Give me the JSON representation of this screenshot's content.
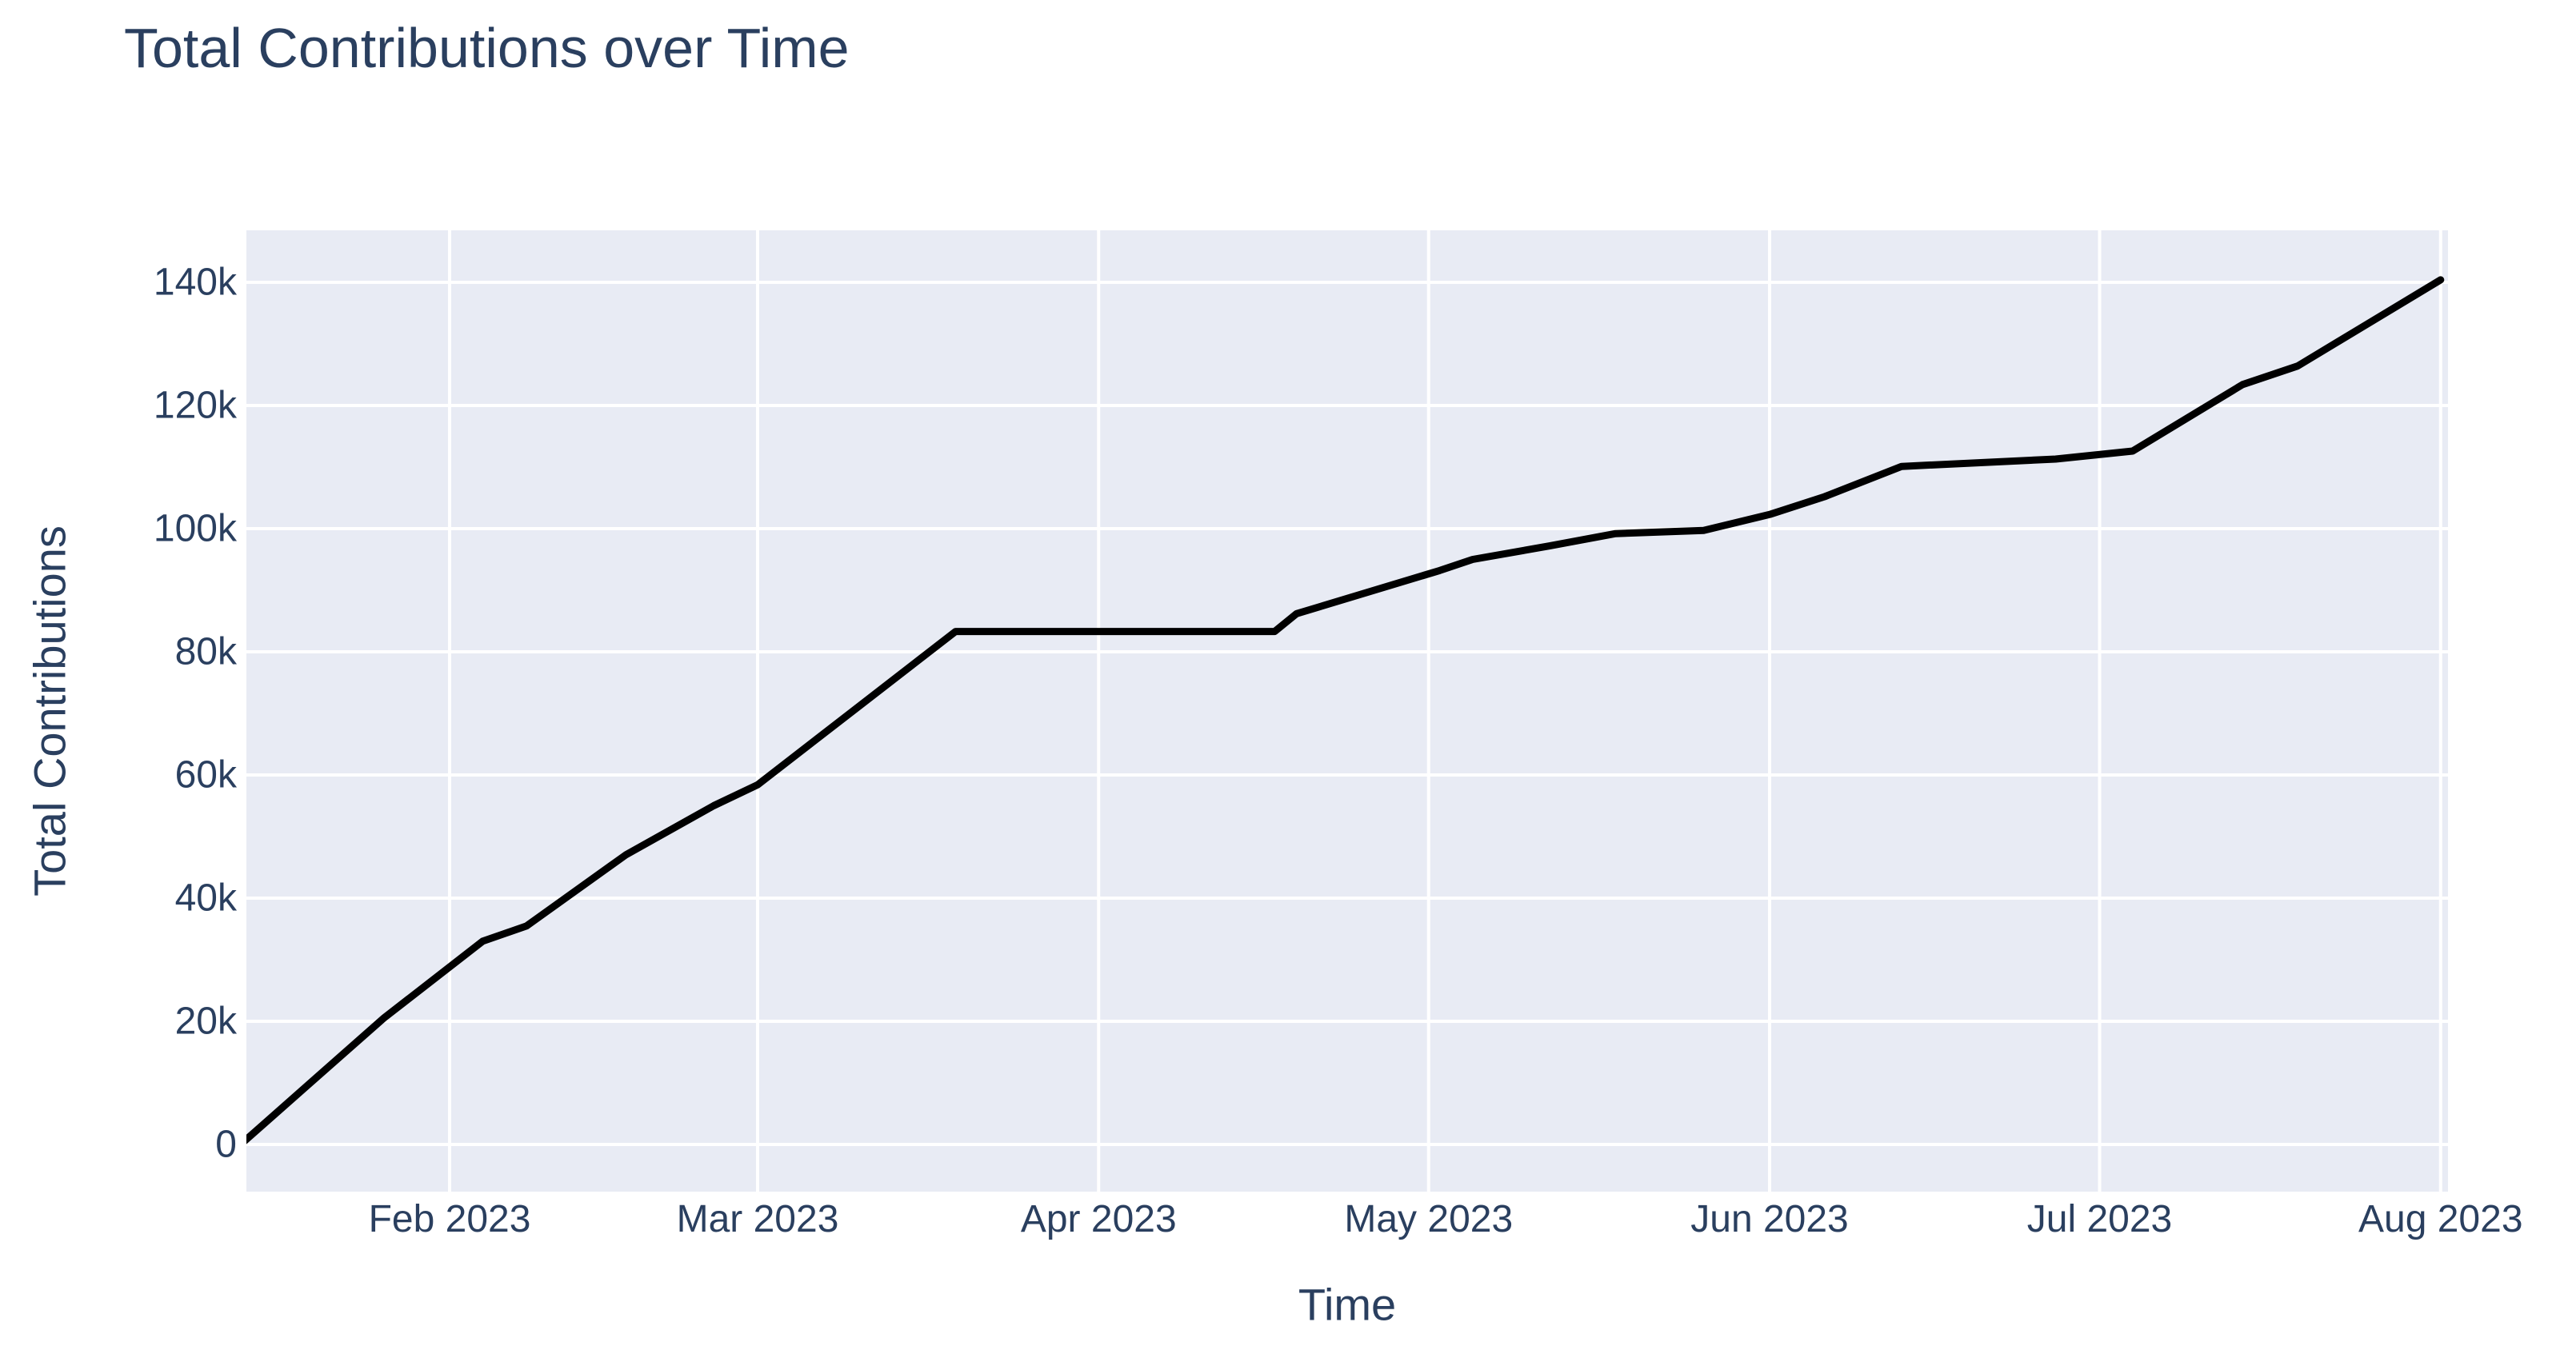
{
  "chart_data": {
    "type": "line",
    "title": "Total Contributions over Time",
    "xlabel": "Time",
    "ylabel": "Total Contributions",
    "legend": false,
    "grid": true,
    "plot_bg": "#e8ebf4",
    "grid_color": "#ffffff",
    "line_color": "#000000",
    "text_color": "#2a3f5f",
    "xlim": [
      "2023-01-13",
      "2023-08-02"
    ],
    "ylim": [
      -7700,
      148400
    ],
    "x_ticks": [
      "2023-02-01",
      "2023-03-01",
      "2023-04-01",
      "2023-05-01",
      "2023-06-01",
      "2023-07-01",
      "2023-08-01"
    ],
    "x_tick_labels": [
      "Feb 2023",
      "Mar 2023",
      "Apr 2023",
      "May 2023",
      "Jun 2023",
      "Jul 2023",
      "Aug 2023"
    ],
    "y_ticks": [
      0,
      20000,
      40000,
      60000,
      80000,
      100000,
      120000,
      140000
    ],
    "y_tick_labels": [
      "0",
      "20k",
      "40k",
      "60k",
      "80k",
      "100k",
      "120k",
      "140k"
    ],
    "series": [
      {
        "name": "Total Contributions",
        "x": [
          "2023-01-13",
          "2023-01-26",
          "2023-02-04",
          "2023-02-08",
          "2023-02-17",
          "2023-02-25",
          "2023-03-01",
          "2023-03-19",
          "2023-04-17",
          "2023-04-19",
          "2023-05-02",
          "2023-05-05",
          "2023-05-12",
          "2023-05-18",
          "2023-05-26",
          "2023-06-01",
          "2023-06-06",
          "2023-06-13",
          "2023-06-27",
          "2023-07-04",
          "2023-07-14",
          "2023-07-19",
          "2023-08-01"
        ],
        "y": [
          0,
          20500,
          33000,
          35500,
          47000,
          55000,
          58400,
          83300,
          83300,
          86200,
          93200,
          95000,
          97200,
          99200,
          99700,
          102300,
          105200,
          110100,
          111300,
          112600,
          123400,
          126400,
          140400
        ]
      }
    ]
  }
}
